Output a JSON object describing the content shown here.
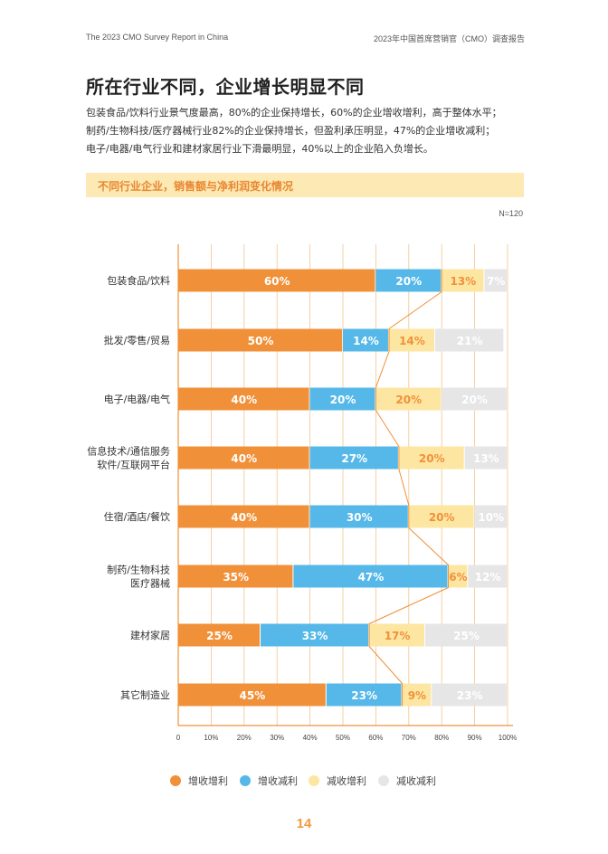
{
  "header": {
    "left": "The 2023 CMO Survey Report in China",
    "right": "2023年中国首席营销官（CMO）调查报告"
  },
  "title": "所在行业不同，企业增长明显不同",
  "description": [
    "包装食品/饮料行业景气度最高，80%的企业保持增长，60%的企业增收增利，高于整体水平；",
    "制药/生物科技/医疗器械行业82%的企业保持增长，但盈利承压明显，47%的企业增收减利；",
    "电子/电器/电气行业和建材家居行业下滑最明显，40%以上的企业陷入负增长。"
  ],
  "chart_banner": "不同行业企业，销售额与净利润变化情况",
  "sample_size": "N=120",
  "chart_data": {
    "type": "bar",
    "orientation": "horizontal",
    "stacked": true,
    "categories": [
      [
        "包装食品/饮料"
      ],
      [
        "批发/零售/贸易"
      ],
      [
        "电子/电器/电气"
      ],
      [
        "信息技术/通信服务",
        "软件/互联网平台"
      ],
      [
        "住宿/酒店/餐饮"
      ],
      [
        "制药/生物科技",
        "医疗器械"
      ],
      [
        "建材家居"
      ],
      [
        "其它制造业"
      ]
    ],
    "series": [
      {
        "name": "增收增利",
        "color": "#f0913a",
        "label_color": "#ffffff",
        "values": [
          60,
          50,
          40,
          40,
          40,
          35,
          25,
          45
        ]
      },
      {
        "name": "增收减利",
        "color": "#55b8e8",
        "label_color": "#ffffff",
        "values": [
          20,
          14,
          20,
          27,
          30,
          47,
          33,
          23
        ]
      },
      {
        "name": "减收增利",
        "color": "#fde6a2",
        "label_color": "#f0913a",
        "values": [
          13,
          14,
          20,
          20,
          20,
          6,
          17,
          9
        ]
      },
      {
        "name": "减收减利",
        "color": "#e6e6e6",
        "label_color": "#ffffff",
        "values": [
          7,
          21,
          20,
          13,
          10,
          12,
          25,
          23
        ]
      }
    ],
    "xlim": [
      0,
      100
    ],
    "xticks": [
      "0",
      "10%",
      "20%",
      "30%",
      "40%",
      "50%",
      "60%",
      "70%",
      "80%",
      "90%",
      "100%"
    ],
    "connector_line": true,
    "connector_color": "#f0913a",
    "legend_position": "bottom"
  },
  "page_number": "14"
}
